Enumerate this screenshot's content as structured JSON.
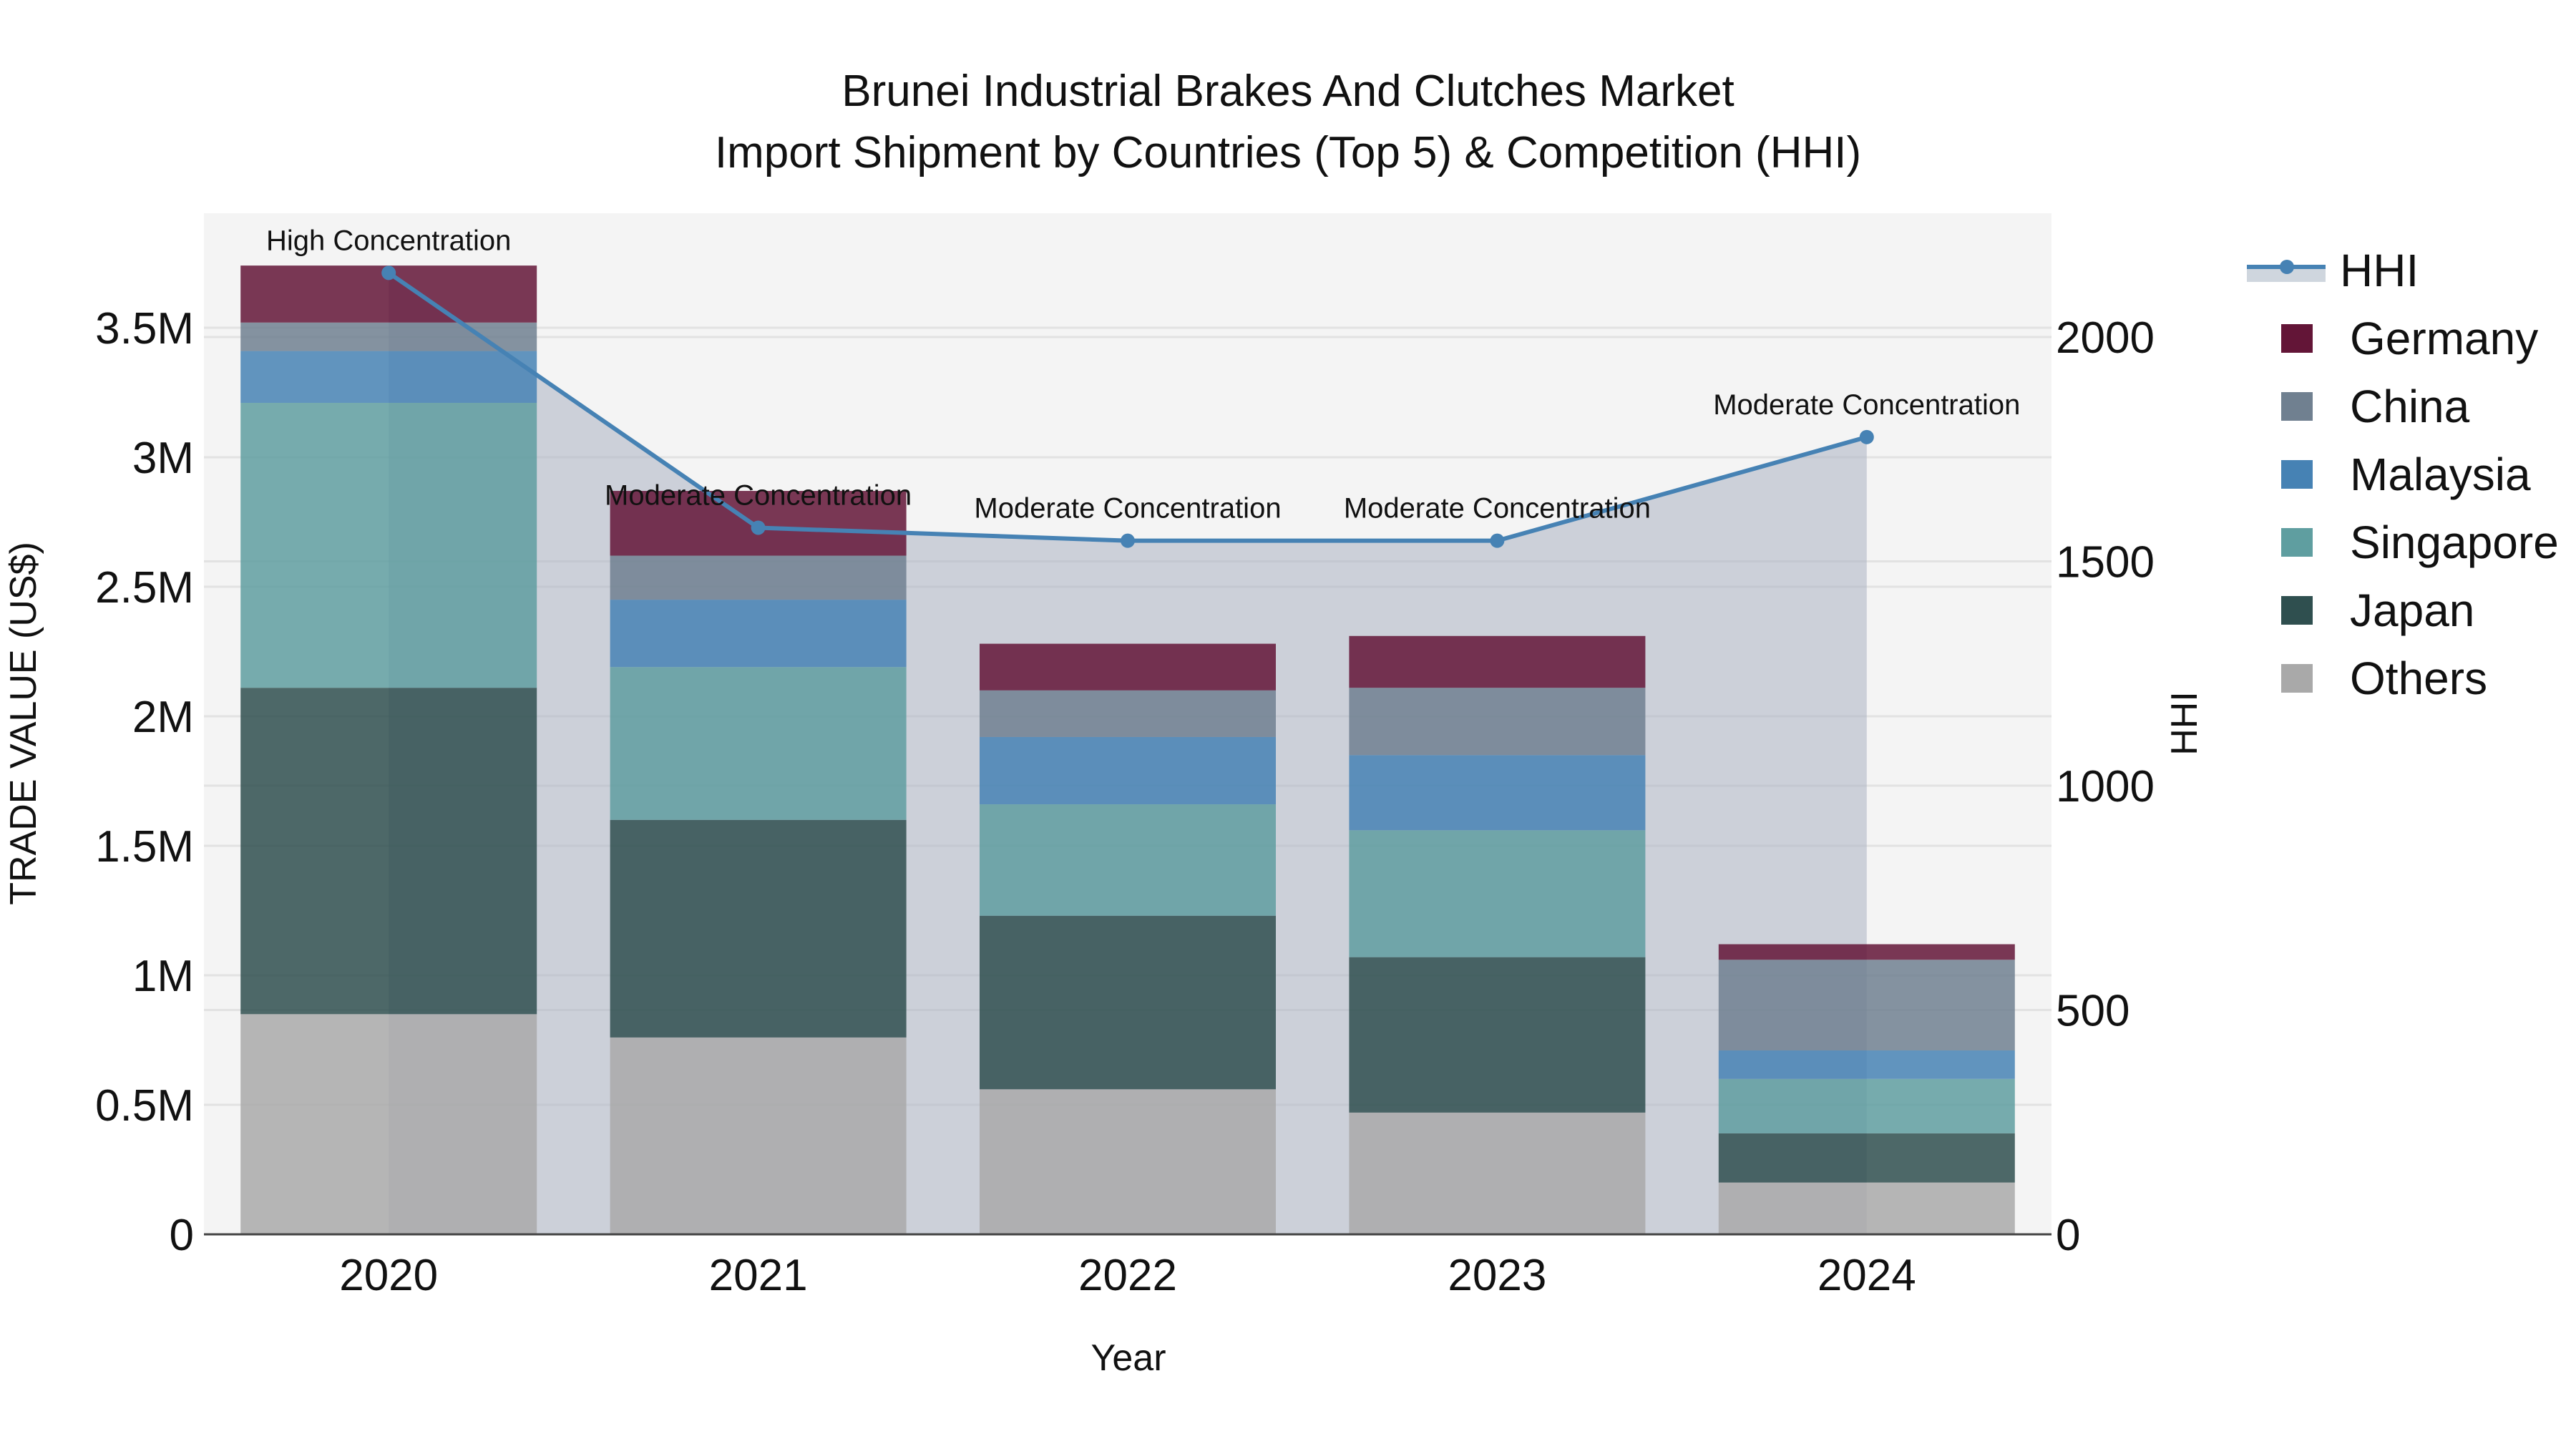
{
  "title": {
    "line1": "Brunei Industrial Brakes And Clutches Market",
    "line2": "Import Shipment by Countries (Top 5) & Competition (HHI)"
  },
  "axes": {
    "x_label": "Year",
    "y_left_label": "TRADE VALUE (US$)",
    "y_right_label": "HHI",
    "y_left_ticks": [
      "0",
      "0.5M",
      "1M",
      "1.5M",
      "2M",
      "2.5M",
      "3M",
      "3.5M"
    ],
    "y_right_ticks": [
      "0",
      "500",
      "1000",
      "1500",
      "2000"
    ],
    "x_ticks": [
      "2020",
      "2021",
      "2022",
      "2023",
      "2024"
    ]
  },
  "legend": {
    "items": [
      {
        "label": "HHI",
        "type": "line",
        "color": "#4682b4"
      },
      {
        "label": "Germany",
        "type": "bar",
        "color": "#631537"
      },
      {
        "label": "China",
        "type": "bar",
        "color": "#708090"
      },
      {
        "label": "Malaysia",
        "type": "bar",
        "color": "#4682b4"
      },
      {
        "label": "Singapore",
        "type": "bar",
        "color": "#5f9ea0"
      },
      {
        "label": "Japan",
        "type": "bar",
        "color": "#2f4f4f"
      },
      {
        "label": "Others",
        "type": "bar",
        "color": "#a9a9a9"
      }
    ]
  },
  "annotations": [
    {
      "year": "2020",
      "text": "High Concentration"
    },
    {
      "year": "2021",
      "text": "Moderate Concentration"
    },
    {
      "year": "2022",
      "text": "Moderate Concentration"
    },
    {
      "year": "2023",
      "text": "Moderate Concentration"
    },
    {
      "year": "2024",
      "text": "Moderate Concentration"
    }
  ],
  "chart_data": {
    "type": "bar",
    "title": "Brunei Industrial Brakes And Clutches Market — Import Shipment by Countries (Top 5) & Competition (HHI)",
    "xlabel": "Year",
    "ylabel": "TRADE VALUE (US$)",
    "y2label": "HHI",
    "categories": [
      "2020",
      "2021",
      "2022",
      "2023",
      "2024"
    ],
    "stacked": true,
    "ylim": [
      0,
      3930000
    ],
    "y2lim": [
      0,
      2270
    ],
    "legend_position": "right",
    "grid": true,
    "series": [
      {
        "name": "Others",
        "color": "#a9a9a9",
        "values": [
          850000,
          760000,
          560000,
          470000,
          200000
        ]
      },
      {
        "name": "Japan",
        "color": "#2f4f4f",
        "values": [
          1260000,
          840000,
          670000,
          600000,
          190000
        ]
      },
      {
        "name": "Singapore",
        "color": "#5f9ea0",
        "values": [
          1100000,
          590000,
          430000,
          490000,
          210000
        ]
      },
      {
        "name": "Malaysia",
        "color": "#4682b4",
        "values": [
          200000,
          260000,
          260000,
          290000,
          110000
        ]
      },
      {
        "name": "China",
        "color": "#708090",
        "values": [
          110000,
          170000,
          180000,
          260000,
          350000
        ]
      },
      {
        "name": "Germany",
        "color": "#631537",
        "values": [
          220000,
          250000,
          180000,
          200000,
          60000
        ]
      }
    ],
    "totals": [
      3740000,
      2870000,
      2280000,
      2310000,
      1120000
    ],
    "hhi": {
      "name": "HHI",
      "type": "line+area",
      "axis": "right",
      "color": "#4682b4",
      "values": [
        2143,
        1575,
        1546,
        1546,
        1777
      ],
      "labels": [
        "High Concentration",
        "Moderate Concentration",
        "Moderate Concentration",
        "Moderate Concentration",
        "Moderate Concentration"
      ]
    }
  }
}
